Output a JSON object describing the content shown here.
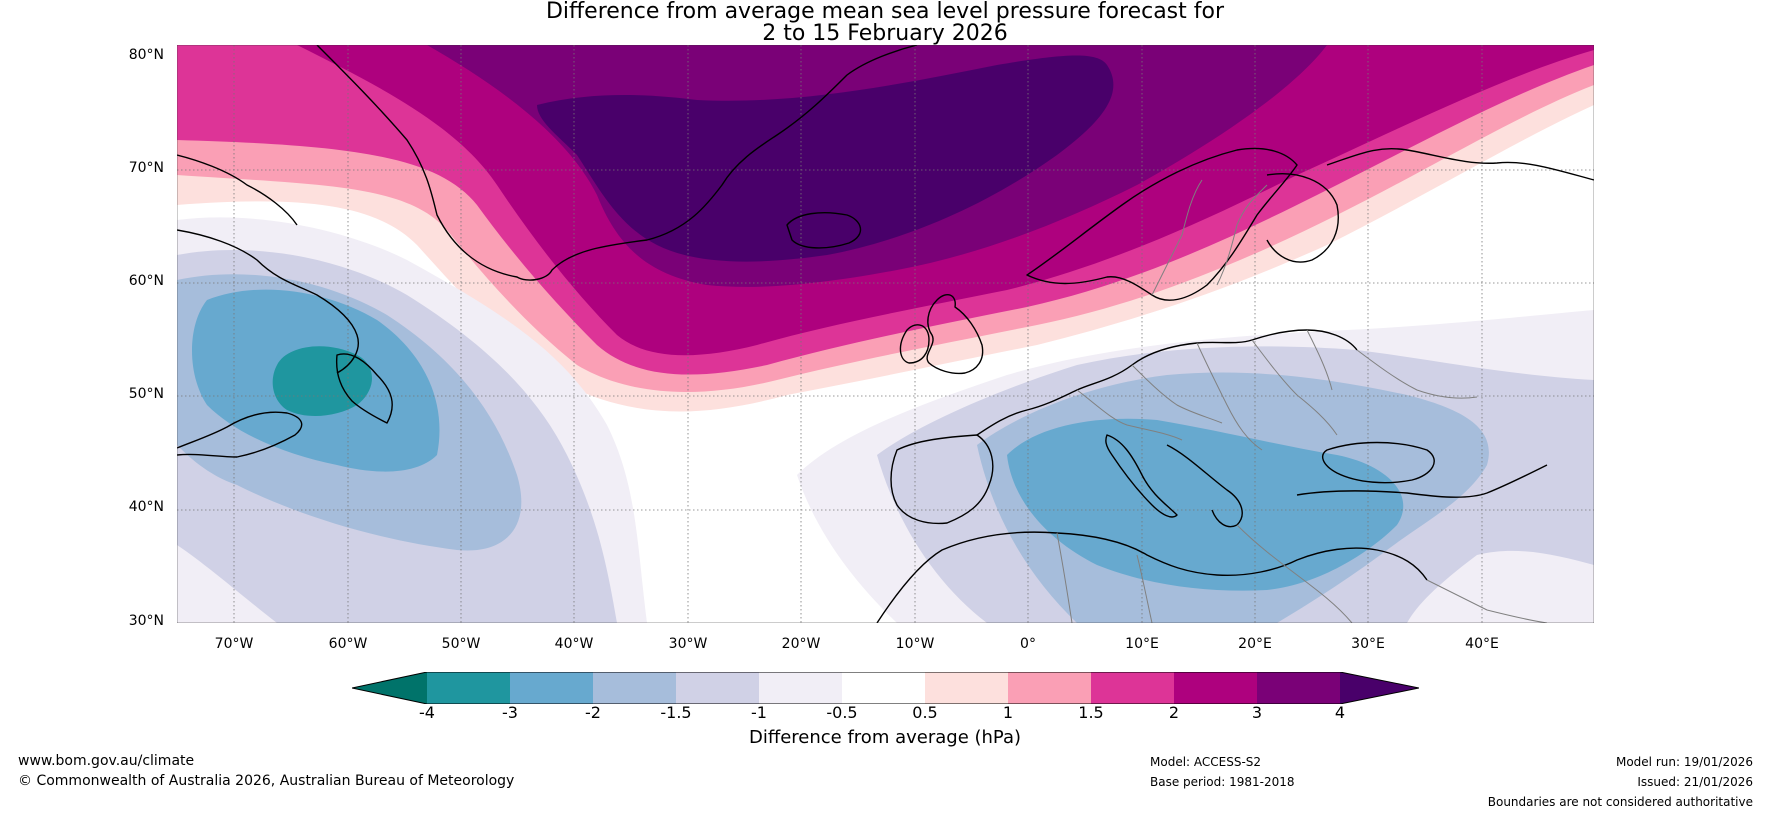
{
  "title": {
    "line1": "Difference from average mean sea level pressure forecast for",
    "line2": "2 to 15 February 2026"
  },
  "lat_labels": [
    "80°N",
    "70°N",
    "60°N",
    "50°N",
    "40°N",
    "30°N"
  ],
  "lon_labels": [
    "70°W",
    "60°W",
    "50°W",
    "40°W",
    "30°W",
    "20°W",
    "10°W",
    "0°",
    "10°E",
    "20°E",
    "30°E",
    "40°E"
  ],
  "colorbar": {
    "label": "Difference from average (hPa)",
    "ticks": [
      "-4",
      "-3",
      "-2",
      "-1.5",
      "-1",
      "-0.5",
      "0.5",
      "1",
      "1.5",
      "2",
      "3",
      "4"
    ],
    "colors": {
      "lt_-4": "#00736a",
      "-4_-3": "#1f969f",
      "-3_-2": "#67a9cf",
      "-2_-1.5": "#a6bddb",
      "-1.5_-1": "#d0d1e6",
      "-1_-0.5": "#f1eef6",
      "-0.5_0.5": "#ffffff",
      "0.5_1": "#fde0dd",
      "1_1.5": "#fa9fb5",
      "1.5_2": "#dd3497",
      "2_3": "#ae017e",
      "3_4": "#7a0177",
      "gt_4": "#49006a"
    }
  },
  "footer": {
    "website": "www.bom.gov.au/climate",
    "copyright": "© Commonwealth of Australia 2026, Australian Bureau of Meteorology",
    "model": "Model: ACCESS-S2",
    "base_period": "Base period: 1981-2018",
    "model_run": "Model run: 19/01/2026",
    "issued": "Issued: 21/01/2026",
    "disclaimer": "Boundaries are not considered authoritative"
  }
}
